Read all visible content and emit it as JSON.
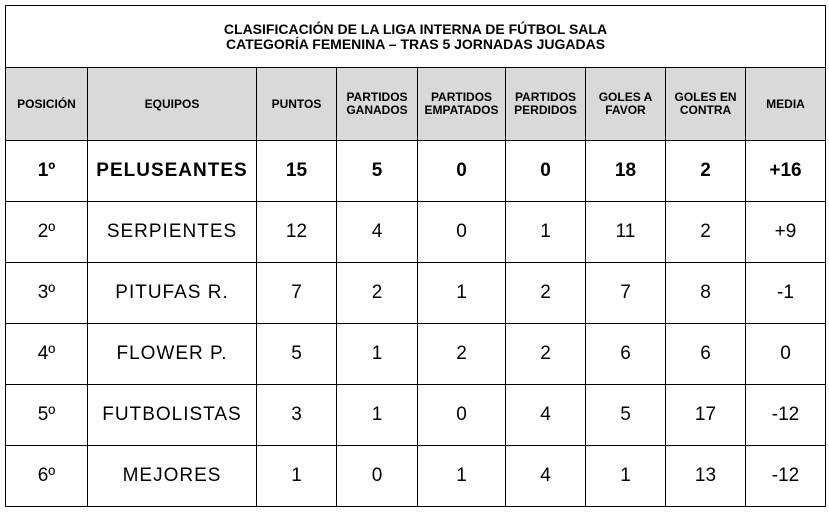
{
  "title": {
    "line1": "CLASIFICACIÓN DE LA LIGA INTERNA DE FÚTBOL SALA",
    "line2": "CATEGORÍA FEMENINA – TRAS 5 JORNADAS JUGADAS"
  },
  "columns": [
    "POSICIÓN",
    "EQUIPOS",
    "PUNTOS",
    "PARTIDOS GANADOS",
    "PARTIDOS EMPATADOS",
    "PARTIDOS PERDIDOS",
    "GOLES A FAVOR",
    "GOLES EN CONTRA",
    "MEDIA"
  ],
  "header_color": "#d9d9d9",
  "rows": [
    {
      "pos": "1º",
      "team": "PELUSEANTES",
      "pts": "15",
      "won": "5",
      "drawn": "0",
      "lost": "0",
      "gf": "18",
      "ga": "2",
      "diff": "+16"
    },
    {
      "pos": "2º",
      "team": "SERPIENTES",
      "pts": "12",
      "won": "4",
      "drawn": "0",
      "lost": "1",
      "gf": "11",
      "ga": "2",
      "diff": "+9"
    },
    {
      "pos": "3º",
      "team": "PITUFAS R.",
      "pts": "7",
      "won": "2",
      "drawn": "1",
      "lost": "2",
      "gf": "7",
      "ga": "8",
      "diff": "-1"
    },
    {
      "pos": "4º",
      "team": "FLOWER P.",
      "pts": "5",
      "won": "1",
      "drawn": "2",
      "lost": "2",
      "gf": "6",
      "ga": "6",
      "diff": "0"
    },
    {
      "pos": "5º",
      "team": "FUTBOLISTAS",
      "pts": "3",
      "won": "1",
      "drawn": "0",
      "lost": "4",
      "gf": "5",
      "ga": "17",
      "diff": "-12"
    },
    {
      "pos": "6º",
      "team": "MEJORES",
      "pts": "1",
      "won": "0",
      "drawn": "1",
      "lost": "4",
      "gf": "1",
      "ga": "13",
      "diff": "-12"
    }
  ]
}
